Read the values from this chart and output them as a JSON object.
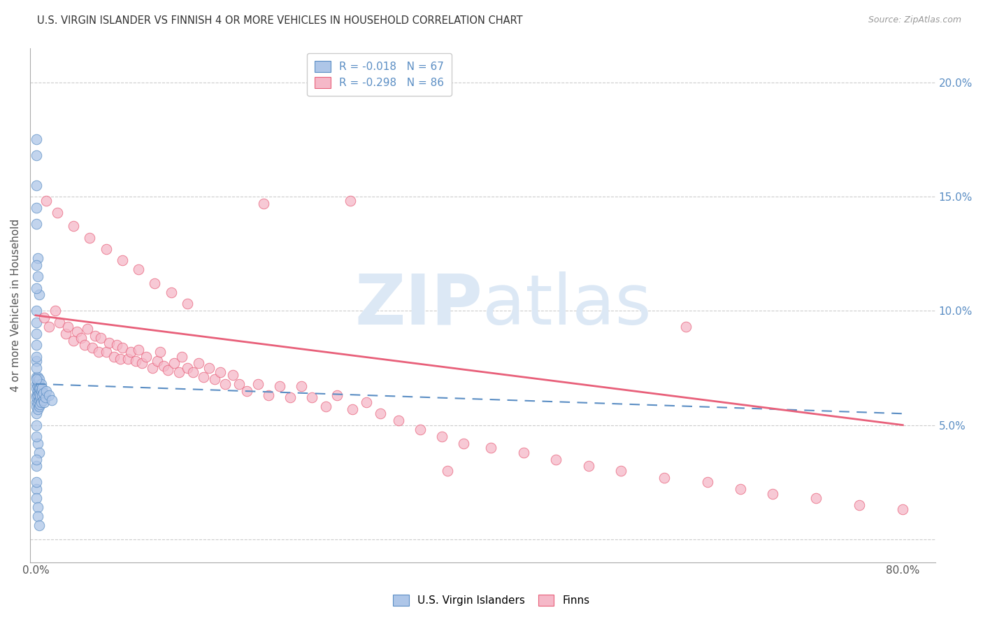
{
  "title": "U.S. VIRGIN ISLANDER VS FINNISH 4 OR MORE VEHICLES IN HOUSEHOLD CORRELATION CHART",
  "source": "Source: ZipAtlas.com",
  "ylabel": "4 or more Vehicles in Household",
  "ylim": [
    -0.01,
    0.215
  ],
  "xlim": [
    -0.005,
    0.83
  ],
  "ytick_vals": [
    0.0,
    0.05,
    0.1,
    0.15,
    0.2
  ],
  "ytick_labels": [
    "",
    "5.0%",
    "10.0%",
    "15.0%",
    "20.0%"
  ],
  "xtick_vals": [
    0.0,
    0.1,
    0.2,
    0.3,
    0.4,
    0.5,
    0.6,
    0.7,
    0.8
  ],
  "xtick_labels": [
    "0.0%",
    "",
    "",
    "",
    "",
    "",
    "",
    "",
    "80.0%"
  ],
  "blue_R": -0.018,
  "blue_N": 67,
  "pink_R": -0.298,
  "pink_N": 86,
  "blue_color": "#aec6e8",
  "pink_color": "#f5b8c8",
  "blue_edge_color": "#5b8ec4",
  "pink_edge_color": "#e8607a",
  "blue_line_color": "#5b8ec4",
  "pink_line_color": "#e8607a",
  "watermark_color": "#dce8f5",
  "grid_color": "#cccccc",
  "title_color": "#333333",
  "axis_label_color": "#555555",
  "right_tick_color": "#5b8ec4",
  "blue_scatter_x": [
    0.001,
    0.001,
    0.001,
    0.001,
    0.001,
    0.001,
    0.001,
    0.001,
    0.002,
    0.002,
    0.002,
    0.002,
    0.002,
    0.002,
    0.002,
    0.003,
    0.003,
    0.003,
    0.003,
    0.003,
    0.003,
    0.004,
    0.004,
    0.004,
    0.004,
    0.005,
    0.005,
    0.005,
    0.006,
    0.006,
    0.007,
    0.007,
    0.008,
    0.009,
    0.01,
    0.012,
    0.015,
    0.001,
    0.001,
    0.001,
    0.001,
    0.001,
    0.002,
    0.002,
    0.003,
    0.001,
    0.001,
    0.001,
    0.002,
    0.003,
    0.001,
    0.001,
    0.001,
    0.002,
    0.002,
    0.003,
    0.001,
    0.001,
    0.001,
    0.001,
    0.001,
    0.001,
    0.001,
    0.001,
    0.001,
    0.001,
    0.001
  ],
  "blue_scatter_y": [
    0.063,
    0.068,
    0.071,
    0.066,
    0.06,
    0.058,
    0.055,
    0.062,
    0.065,
    0.069,
    0.063,
    0.057,
    0.06,
    0.067,
    0.071,
    0.064,
    0.068,
    0.061,
    0.066,
    0.058,
    0.07,
    0.062,
    0.066,
    0.059,
    0.063,
    0.065,
    0.06,
    0.068,
    0.063,
    0.066,
    0.061,
    0.064,
    0.06,
    0.062,
    0.065,
    0.063,
    0.061,
    0.175,
    0.168,
    0.155,
    0.145,
    0.138,
    0.123,
    0.115,
    0.107,
    0.095,
    0.085,
    0.078,
    0.042,
    0.038,
    0.032,
    0.022,
    0.018,
    0.014,
    0.01,
    0.006,
    0.12,
    0.11,
    0.1,
    0.09,
    0.08,
    0.075,
    0.07,
    0.05,
    0.045,
    0.035,
    0.025
  ],
  "pink_scatter_x": [
    0.008,
    0.012,
    0.018,
    0.022,
    0.028,
    0.03,
    0.035,
    0.038,
    0.042,
    0.045,
    0.048,
    0.052,
    0.055,
    0.058,
    0.06,
    0.065,
    0.068,
    0.072,
    0.075,
    0.078,
    0.08,
    0.085,
    0.088,
    0.092,
    0.095,
    0.098,
    0.102,
    0.108,
    0.112,
    0.115,
    0.118,
    0.122,
    0.128,
    0.132,
    0.135,
    0.14,
    0.145,
    0.15,
    0.155,
    0.16,
    0.165,
    0.17,
    0.175,
    0.182,
    0.188,
    0.195,
    0.205,
    0.215,
    0.225,
    0.235,
    0.245,
    0.255,
    0.268,
    0.278,
    0.292,
    0.305,
    0.318,
    0.335,
    0.355,
    0.375,
    0.395,
    0.42,
    0.45,
    0.48,
    0.51,
    0.54,
    0.58,
    0.62,
    0.65,
    0.68,
    0.72,
    0.76,
    0.8,
    0.01,
    0.02,
    0.035,
    0.05,
    0.065,
    0.08,
    0.095,
    0.11,
    0.125,
    0.14,
    0.21,
    0.29,
    0.38,
    0.6
  ],
  "pink_scatter_y": [
    0.097,
    0.093,
    0.1,
    0.095,
    0.09,
    0.093,
    0.087,
    0.091,
    0.088,
    0.085,
    0.092,
    0.084,
    0.089,
    0.082,
    0.088,
    0.082,
    0.086,
    0.08,
    0.085,
    0.079,
    0.084,
    0.079,
    0.082,
    0.078,
    0.083,
    0.077,
    0.08,
    0.075,
    0.078,
    0.082,
    0.076,
    0.074,
    0.077,
    0.073,
    0.08,
    0.075,
    0.073,
    0.077,
    0.071,
    0.075,
    0.07,
    0.073,
    0.068,
    0.072,
    0.068,
    0.065,
    0.068,
    0.063,
    0.067,
    0.062,
    0.067,
    0.062,
    0.058,
    0.063,
    0.057,
    0.06,
    0.055,
    0.052,
    0.048,
    0.045,
    0.042,
    0.04,
    0.038,
    0.035,
    0.032,
    0.03,
    0.027,
    0.025,
    0.022,
    0.02,
    0.018,
    0.015,
    0.013,
    0.148,
    0.143,
    0.137,
    0.132,
    0.127,
    0.122,
    0.118,
    0.112,
    0.108,
    0.103,
    0.147,
    0.148,
    0.03,
    0.093
  ],
  "blue_line_x": [
    0.0,
    0.8
  ],
  "blue_line_y": [
    0.068,
    0.055
  ],
  "pink_line_x": [
    0.0,
    0.8
  ],
  "pink_line_y": [
    0.098,
    0.05
  ]
}
